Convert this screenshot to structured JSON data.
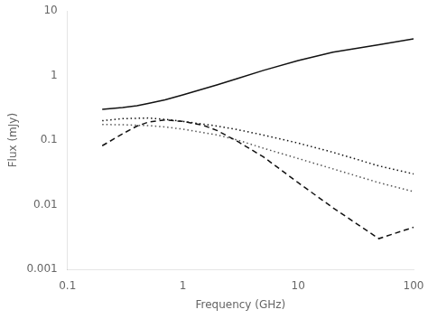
{
  "chart_data": {
    "type": "line",
    "log": true,
    "grid": false,
    "xlabel": "Frequency (GHz)",
    "ylabel": "Flux (mJy)",
    "xlim": [
      0.1,
      100
    ],
    "ylim": [
      0.001,
      10
    ],
    "xticks": [
      0.1,
      1,
      10,
      100
    ],
    "yticks": [
      0.001,
      0.01,
      0.1,
      1,
      10
    ],
    "series": [
      {
        "color": "#111111",
        "line_style": "solid",
        "x": [
          0.2,
          0.3,
          0.4,
          0.5,
          0.7,
          1.0,
          2.0,
          3.0,
          5.0,
          10.0,
          20.0,
          50.0,
          100.0
        ],
        "values": [
          0.3,
          0.32,
          0.34,
          0.37,
          0.42,
          0.5,
          0.72,
          0.9,
          1.2,
          1.7,
          2.3,
          3.0,
          3.7
        ]
      },
      {
        "color": "#111111",
        "line_style": "dashed",
        "x": [
          0.2,
          0.3,
          0.4,
          0.5,
          0.7,
          1.0,
          1.5,
          2.0,
          3.0,
          5.0,
          10.0,
          20.0,
          50.0,
          100.0
        ],
        "values": [
          0.082,
          0.125,
          0.165,
          0.19,
          0.205,
          0.195,
          0.17,
          0.14,
          0.095,
          0.055,
          0.022,
          0.009,
          0.003,
          0.0045
        ]
      },
      {
        "color": "#111111",
        "line_style": "dotted",
        "x": [
          0.2,
          0.3,
          0.5,
          0.7,
          1.0,
          2.0,
          3.0,
          5.0,
          10.0,
          20.0,
          50.0,
          100.0
        ],
        "values": [
          0.2,
          0.215,
          0.22,
          0.21,
          0.195,
          0.165,
          0.145,
          0.12,
          0.09,
          0.065,
          0.04,
          0.03
        ]
      },
      {
        "color": "#555555",
        "line_style": "dotted",
        "x": [
          0.2,
          0.3,
          0.5,
          0.7,
          1.0,
          2.0,
          3.0,
          5.0,
          10.0,
          20.0,
          50.0,
          100.0
        ],
        "values": [
          0.175,
          0.173,
          0.168,
          0.16,
          0.148,
          0.12,
          0.1,
          0.075,
          0.052,
          0.036,
          0.022,
          0.016
        ]
      }
    ]
  }
}
